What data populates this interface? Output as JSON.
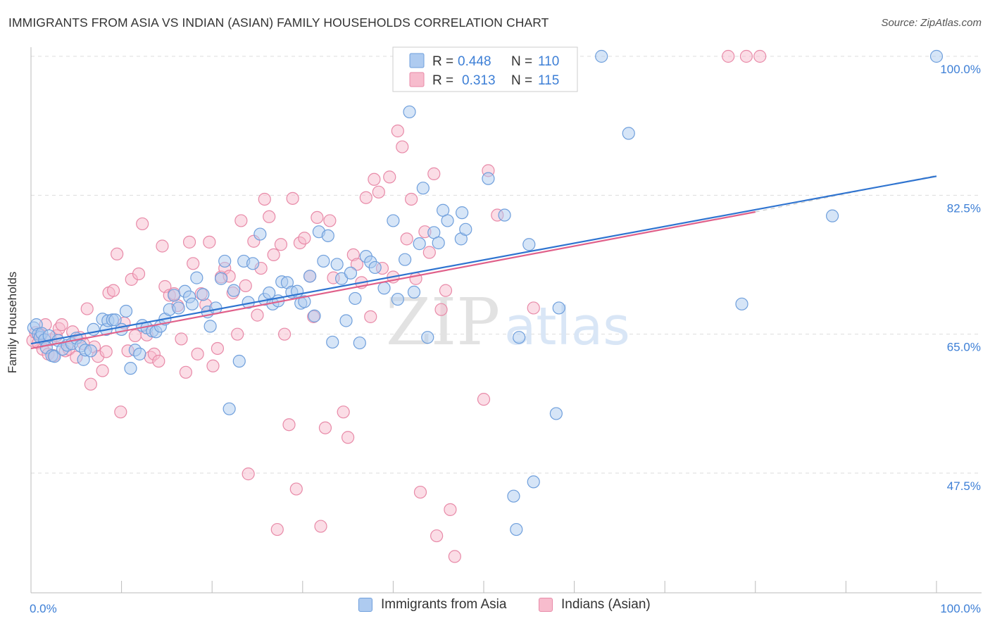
{
  "title": "IMMIGRANTS FROM ASIA VS INDIAN (ASIAN) FAMILY HOUSEHOLDS CORRELATION CHART",
  "source": "Source: ZipAtlas.com",
  "watermark": {
    "zip": "ZIP",
    "atlas": "atlas"
  },
  "legend_top": {
    "rows": [
      {
        "r_label": "R =",
        "r_value": "0.448",
        "n_label": "N =",
        "n_value": "110"
      },
      {
        "r_label": "R =",
        "r_value": "0.313",
        "n_label": "N =",
        "n_value": "115"
      }
    ]
  },
  "colors": {
    "blue_fill": "#aecbf0",
    "blue_stroke": "#6f9fdc",
    "blue_line": "#2f74d0",
    "pink_fill": "#f7bccd",
    "pink_stroke": "#e88aa8",
    "pink_line": "#e0608a",
    "tick_label": "#3d7fd6",
    "grid": "#dddddd"
  },
  "chart_data": {
    "type": "scatter",
    "title": "IMMIGRANTS FROM ASIA VS INDIAN (ASIAN) FAMILY HOUSEHOLDS CORRELATION CHART",
    "xlabel": "",
    "ylabel": "Family Households",
    "xlim": [
      0,
      100
    ],
    "ylim": [
      30.5,
      101.5
    ],
    "x_tick_labels": [
      "0.0%",
      "100.0%"
    ],
    "y_ticks": [
      {
        "value": 47.5,
        "label": "47.5%"
      },
      {
        "value": 65.0,
        "label": "65.0%"
      },
      {
        "value": 82.5,
        "label": "82.5%"
      },
      {
        "value": 100.0,
        "label": "100.0%"
      }
    ],
    "grid": true,
    "legend_position": "top-center",
    "series": [
      {
        "name": "Immigrants from Asia",
        "color": "blue",
        "R": 0.448,
        "N": 110,
        "trend": {
          "x0": 0,
          "y0": 63.8,
          "x1": 100,
          "y1": 84.9
        },
        "points": [
          [
            0.3,
            65.8
          ],
          [
            0.6,
            66.2
          ],
          [
            0.8,
            65.0
          ],
          [
            1.0,
            64.6
          ],
          [
            1.2,
            65.1
          ],
          [
            1.5,
            64.3
          ],
          [
            1.7,
            63.3
          ],
          [
            2.0,
            64.8
          ],
          [
            2.3,
            62.3
          ],
          [
            2.6,
            62.2
          ],
          [
            3.0,
            64.2
          ],
          [
            3.5,
            63.1
          ],
          [
            4.0,
            63.6
          ],
          [
            4.5,
            63.8
          ],
          [
            5.0,
            64.5
          ],
          [
            5.5,
            63.5
          ],
          [
            5.8,
            61.8
          ],
          [
            6.0,
            63.0
          ],
          [
            6.6,
            62.9
          ],
          [
            6.9,
            65.6
          ],
          [
            7.9,
            66.9
          ],
          [
            8.3,
            65.6
          ],
          [
            8.5,
            66.7
          ],
          [
            9.0,
            66.8
          ],
          [
            9.3,
            66.8
          ],
          [
            10.0,
            65.6
          ],
          [
            10.5,
            67.9
          ],
          [
            11.0,
            60.7
          ],
          [
            11.5,
            63.0
          ],
          [
            12.0,
            62.5
          ],
          [
            12.3,
            66.1
          ],
          [
            12.8,
            65.8
          ],
          [
            13.4,
            65.4
          ],
          [
            13.8,
            65.3
          ],
          [
            14.3,
            66.0
          ],
          [
            14.8,
            66.9
          ],
          [
            15.3,
            68.1
          ],
          [
            15.8,
            69.9
          ],
          [
            16.3,
            68.3
          ],
          [
            17.0,
            70.4
          ],
          [
            17.5,
            69.7
          ],
          [
            17.8,
            68.8
          ],
          [
            18.3,
            72.1
          ],
          [
            19.0,
            70.0
          ],
          [
            19.5,
            67.8
          ],
          [
            19.8,
            66.0
          ],
          [
            20.4,
            68.3
          ],
          [
            21.0,
            72.0
          ],
          [
            21.4,
            74.2
          ],
          [
            21.9,
            55.6
          ],
          [
            22.4,
            70.5
          ],
          [
            23.0,
            61.6
          ],
          [
            23.5,
            74.2
          ],
          [
            24.0,
            69.0
          ],
          [
            24.5,
            73.9
          ],
          [
            25.3,
            77.6
          ],
          [
            25.8,
            69.4
          ],
          [
            26.3,
            70.2
          ],
          [
            26.7,
            68.8
          ],
          [
            27.3,
            69.2
          ],
          [
            27.7,
            71.6
          ],
          [
            28.3,
            71.5
          ],
          [
            28.8,
            70.3
          ],
          [
            29.4,
            70.4
          ],
          [
            29.8,
            68.9
          ],
          [
            30.2,
            69.1
          ],
          [
            30.8,
            72.3
          ],
          [
            31.3,
            67.3
          ],
          [
            31.8,
            77.9
          ],
          [
            32.3,
            74.2
          ],
          [
            32.8,
            77.4
          ],
          [
            33.3,
            64.0
          ],
          [
            33.8,
            73.8
          ],
          [
            34.3,
            72.0
          ],
          [
            34.8,
            66.7
          ],
          [
            35.3,
            72.7
          ],
          [
            35.8,
            69.5
          ],
          [
            36.3,
            63.9
          ],
          [
            37.0,
            74.8
          ],
          [
            37.5,
            74.1
          ],
          [
            38.0,
            73.4
          ],
          [
            39.0,
            70.8
          ],
          [
            40.0,
            79.3
          ],
          [
            40.5,
            69.4
          ],
          [
            41.3,
            74.4
          ],
          [
            41.8,
            93.0
          ],
          [
            42.3,
            70.3
          ],
          [
            42.9,
            76.4
          ],
          [
            43.3,
            83.4
          ],
          [
            43.8,
            64.6
          ],
          [
            44.5,
            77.8
          ],
          [
            45.0,
            76.5
          ],
          [
            45.5,
            80.6
          ],
          [
            46.0,
            79.3
          ],
          [
            47.5,
            77.0
          ],
          [
            47.6,
            80.3
          ],
          [
            48.0,
            78.2
          ],
          [
            50.5,
            84.6
          ],
          [
            52.3,
            80.0
          ],
          [
            53.3,
            44.6
          ],
          [
            53.6,
            40.4
          ],
          [
            53.9,
            64.6
          ],
          [
            55.0,
            76.3
          ],
          [
            55.5,
            46.4
          ],
          [
            58.0,
            55.0
          ],
          [
            58.3,
            68.3
          ],
          [
            63.0,
            100.0
          ],
          [
            66.0,
            90.3
          ],
          [
            78.5,
            68.8
          ],
          [
            88.5,
            79.9
          ],
          [
            100.0,
            100.0
          ]
        ]
      },
      {
        "name": "Indians (Asian)",
        "color": "pink",
        "R": 0.313,
        "N": 115,
        "trend": {
          "x0": 0,
          "y0": 63.2,
          "x1": 80,
          "y1": 80.4,
          "dash_x1": 100,
          "dash_y1": 85.0
        },
        "points": [
          [
            0.2,
            64.2
          ],
          [
            0.5,
            65.2
          ],
          [
            0.8,
            63.9
          ],
          [
            1.0,
            65.0
          ],
          [
            1.3,
            63.1
          ],
          [
            1.6,
            66.2
          ],
          [
            1.9,
            62.5
          ],
          [
            2.2,
            64.3
          ],
          [
            2.5,
            62.3
          ],
          [
            2.8,
            64.8
          ],
          [
            3.1,
            65.7
          ],
          [
            3.4,
            66.2
          ],
          [
            3.8,
            62.9
          ],
          [
            4.2,
            63.1
          ],
          [
            4.6,
            65.3
          ],
          [
            5.0,
            62.1
          ],
          [
            5.4,
            64.6
          ],
          [
            5.8,
            63.8
          ],
          [
            6.2,
            68.2
          ],
          [
            6.6,
            58.7
          ],
          [
            7.0,
            63.4
          ],
          [
            7.4,
            62.2
          ],
          [
            7.9,
            60.4
          ],
          [
            8.3,
            62.8
          ],
          [
            8.6,
            70.2
          ],
          [
            9.1,
            70.5
          ],
          [
            9.5,
            75.1
          ],
          [
            9.9,
            55.2
          ],
          [
            10.3,
            66.4
          ],
          [
            10.7,
            62.9
          ],
          [
            11.1,
            71.9
          ],
          [
            11.5,
            64.8
          ],
          [
            11.9,
            72.6
          ],
          [
            12.3,
            78.9
          ],
          [
            12.8,
            64.9
          ],
          [
            13.2,
            62.1
          ],
          [
            13.6,
            62.5
          ],
          [
            14.1,
            61.6
          ],
          [
            14.5,
            76.1
          ],
          [
            14.8,
            71.0
          ],
          [
            15.3,
            69.9
          ],
          [
            15.8,
            70.1
          ],
          [
            16.2,
            68.6
          ],
          [
            16.6,
            64.4
          ],
          [
            17.1,
            60.2
          ],
          [
            17.5,
            76.6
          ],
          [
            17.9,
            73.9
          ],
          [
            18.4,
            62.5
          ],
          [
            18.8,
            70.1
          ],
          [
            19.3,
            68.7
          ],
          [
            19.7,
            76.6
          ],
          [
            20.1,
            61.0
          ],
          [
            20.6,
            63.2
          ],
          [
            21.0,
            72.2
          ],
          [
            21.4,
            73.3
          ],
          [
            21.9,
            72.3
          ],
          [
            22.3,
            70.2
          ],
          [
            22.8,
            65.0
          ],
          [
            23.2,
            79.3
          ],
          [
            23.7,
            71.1
          ],
          [
            24.0,
            47.4
          ],
          [
            24.6,
            76.7
          ],
          [
            25.0,
            67.4
          ],
          [
            25.4,
            73.3
          ],
          [
            25.8,
            82.0
          ],
          [
            26.3,
            79.8
          ],
          [
            26.8,
            75.0
          ],
          [
            27.2,
            40.4
          ],
          [
            27.6,
            76.3
          ],
          [
            28.0,
            65.0
          ],
          [
            28.5,
            53.6
          ],
          [
            28.9,
            82.1
          ],
          [
            29.3,
            45.5
          ],
          [
            29.7,
            76.5
          ],
          [
            30.2,
            77.1
          ],
          [
            30.8,
            72.3
          ],
          [
            31.2,
            67.2
          ],
          [
            31.6,
            79.7
          ],
          [
            32.0,
            40.8
          ],
          [
            32.5,
            53.2
          ],
          [
            33.0,
            79.3
          ],
          [
            33.4,
            72.1
          ],
          [
            34.5,
            55.2
          ],
          [
            35.0,
            52.0
          ],
          [
            35.6,
            75.0
          ],
          [
            36.0,
            73.8
          ],
          [
            36.5,
            71.5
          ],
          [
            37.0,
            82.2
          ],
          [
            37.5,
            67.2
          ],
          [
            37.9,
            84.5
          ],
          [
            38.4,
            82.9
          ],
          [
            38.8,
            73.3
          ],
          [
            39.6,
            84.8
          ],
          [
            40.0,
            72.2
          ],
          [
            40.5,
            90.6
          ],
          [
            41.0,
            88.6
          ],
          [
            41.5,
            77.0
          ],
          [
            42.0,
            82.0
          ],
          [
            42.5,
            72.0
          ],
          [
            43.0,
            45.1
          ],
          [
            43.5,
            77.9
          ],
          [
            44.0,
            75.3
          ],
          [
            44.5,
            85.2
          ],
          [
            44.8,
            39.6
          ],
          [
            45.3,
            68.1
          ],
          [
            45.8,
            70.5
          ],
          [
            46.3,
            42.9
          ],
          [
            46.8,
            37.0
          ],
          [
            50.0,
            56.8
          ],
          [
            50.5,
            85.6
          ],
          [
            51.5,
            80.0
          ],
          [
            55.5,
            68.3
          ],
          [
            77.0,
            100.0
          ],
          [
            79.0,
            100.0
          ],
          [
            80.5,
            100.0
          ]
        ]
      }
    ]
  },
  "legend_bottom": {
    "items": [
      {
        "label": "Immigrants from Asia"
      },
      {
        "label": "Indians (Asian)"
      }
    ]
  }
}
